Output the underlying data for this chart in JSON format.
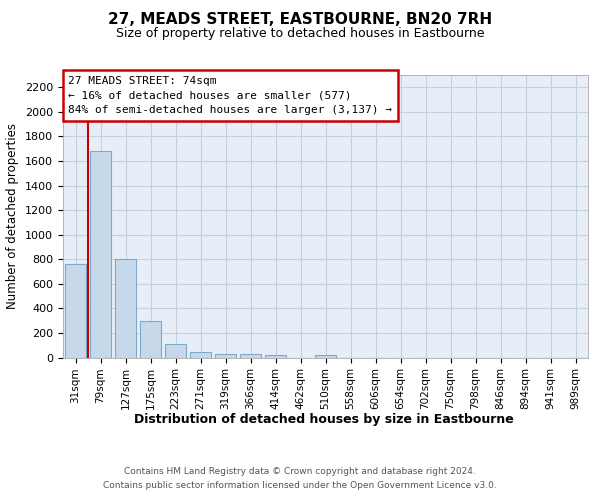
{
  "title": "27, MEADS STREET, EASTBOURNE, BN20 7RH",
  "subtitle": "Size of property relative to detached houses in Eastbourne",
  "xlabel": "Distribution of detached houses by size in Eastbourne",
  "ylabel": "Number of detached properties",
  "footer_line1": "Contains HM Land Registry data © Crown copyright and database right 2024.",
  "footer_line2": "Contains public sector information licensed under the Open Government Licence v3.0.",
  "categories": [
    "31sqm",
    "79sqm",
    "127sqm",
    "175sqm",
    "223sqm",
    "271sqm",
    "319sqm",
    "366sqm",
    "414sqm",
    "462sqm",
    "510sqm",
    "558sqm",
    "606sqm",
    "654sqm",
    "702sqm",
    "750sqm",
    "798sqm",
    "846sqm",
    "894sqm",
    "941sqm",
    "989sqm"
  ],
  "values": [
    760,
    1680,
    800,
    300,
    110,
    42,
    30,
    25,
    22,
    0,
    22,
    0,
    0,
    0,
    0,
    0,
    0,
    0,
    0,
    0,
    0
  ],
  "ylim": [
    0,
    2300
  ],
  "yticks": [
    0,
    200,
    400,
    600,
    800,
    1000,
    1200,
    1400,
    1600,
    1800,
    2000,
    2200
  ],
  "bar_color": "#c8d8eb",
  "bar_edge_color": "#7aabcc",
  "grid_color": "#c5cfe0",
  "annotation_line1": "27 MEADS STREET: 74sqm",
  "annotation_line2": "← 16% of detached houses are smaller (577)",
  "annotation_line3": "84% of semi-detached houses are larger (3,137) →",
  "vline_color": "#cc0000",
  "ann_edge_color": "#cc0000",
  "background_color": "#ffffff",
  "plot_bg_color": "#e8eef8"
}
